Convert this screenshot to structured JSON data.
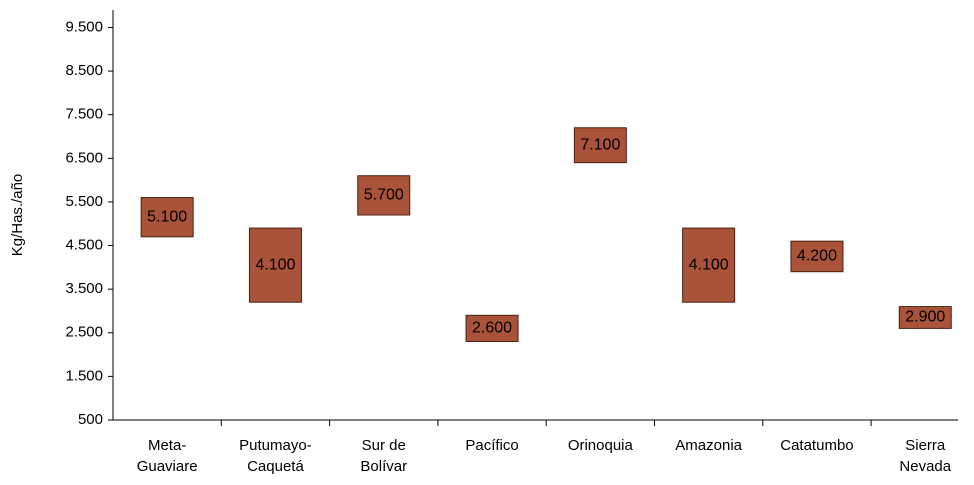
{
  "chart_data": {
    "type": "floating-bar",
    "y_label": "Kg/Has./año",
    "categories": [
      "Meta-\nGuaviare",
      "Putumayo-\nCaquetá",
      "Sur de\nBolívar",
      "Pacífico",
      "Orinoquia",
      "Amazonia",
      "Catatumbo",
      "Sierra\nNevada"
    ],
    "low": [
      4700,
      3200,
      5200,
      2300,
      6400,
      3200,
      3900,
      2600
    ],
    "high": [
      5600,
      4900,
      6100,
      2900,
      7200,
      4900,
      4600,
      3100
    ],
    "values": [
      5100,
      4100,
      5700,
      2600,
      7100,
      4100,
      4200,
      2900
    ],
    "value_labels": [
      "5.100",
      "4.100",
      "5.700",
      "2.600",
      "7.100",
      "4.100",
      "4.200",
      "2.900"
    ],
    "color": "#a9533a",
    "ylim": [
      500,
      9900
    ],
    "yticks": [
      {
        "value": 500,
        "label": "500"
      },
      {
        "value": 1500,
        "label": "1.500"
      },
      {
        "value": 2500,
        "label": "2.500"
      },
      {
        "value": 3500,
        "label": "3.500"
      },
      {
        "value": 4500,
        "label": "4.500"
      },
      {
        "value": 5500,
        "label": "5.500"
      },
      {
        "value": 6500,
        "label": "6.500"
      },
      {
        "value": 7500,
        "label": "7.500"
      },
      {
        "value": 8500,
        "label": "8.500"
      },
      {
        "value": 9500,
        "label": "9.500"
      }
    ]
  }
}
